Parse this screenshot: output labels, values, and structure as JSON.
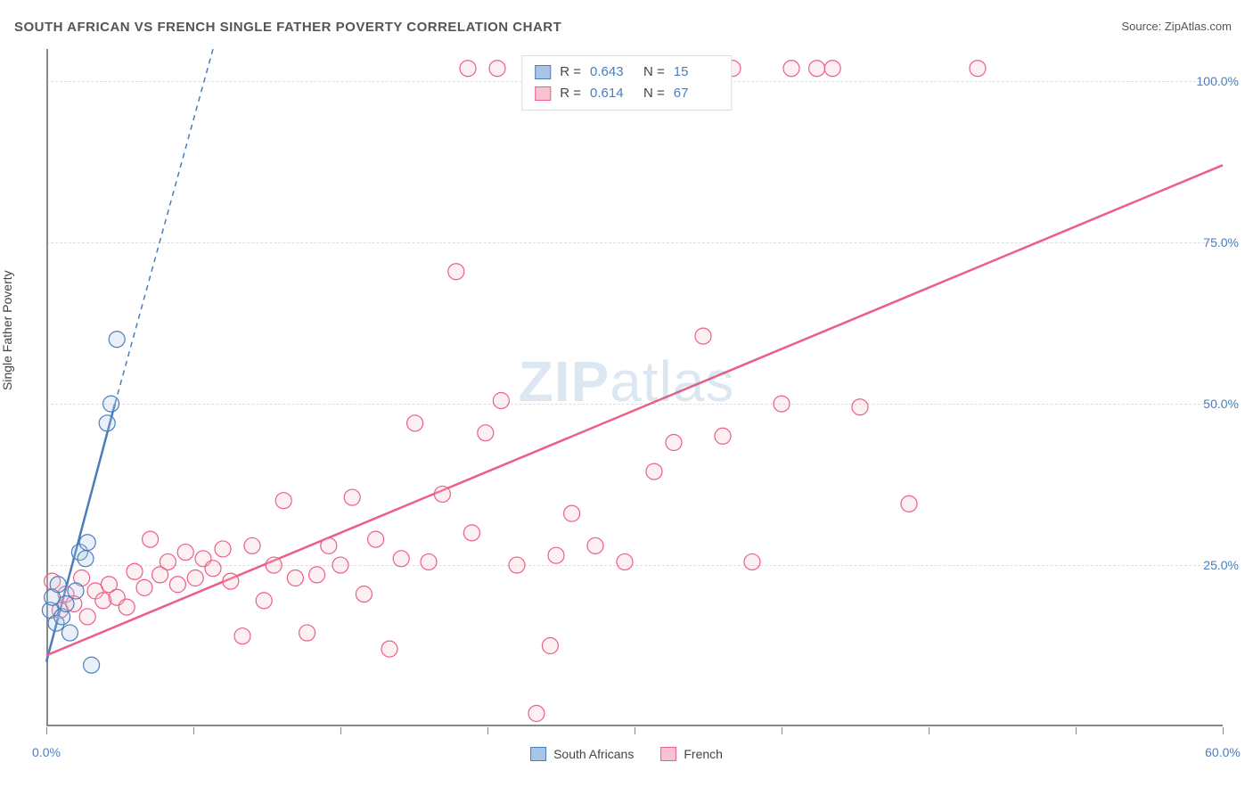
{
  "title": "SOUTH AFRICAN VS FRENCH SINGLE FATHER POVERTY CORRELATION CHART",
  "source_prefix": "Source: ",
  "source_link": "ZipAtlas.com",
  "ylabel": "Single Father Poverty",
  "watermark_bold": "ZIP",
  "watermark_rest": "atlas",
  "chart": {
    "type": "scatter",
    "background_color": "#ffffff",
    "grid_color": "#dddddd",
    "axis_color": "#888888",
    "tick_label_color": "#4a7ebb",
    "text_color": "#444444",
    "xlim": [
      0,
      60
    ],
    "ylim": [
      0,
      105
    ],
    "x_ticks": [
      0,
      7.5,
      15,
      22.5,
      30,
      37.5,
      45,
      52.5,
      60
    ],
    "x_tick_labels": {
      "0": "0.0%",
      "60": "60.0%"
    },
    "y_gridlines": [
      25,
      50,
      75,
      100
    ],
    "y_tick_labels": {
      "25": "25.0%",
      "50": "50.0%",
      "75": "75.0%",
      "100": "100.0%"
    },
    "marker_radius": 9,
    "marker_stroke_width": 1.2,
    "marker_fill_opacity": 0.25,
    "trend_line_width": 2.5,
    "trend_line_dash": "6,5",
    "series": [
      {
        "name": "South Africans",
        "color_stroke": "#4a7ebb",
        "color_fill": "#a8c5e8",
        "R": "0.643",
        "N": "15",
        "trend": {
          "x1": 0,
          "y1": 10,
          "x2_solid": 3.5,
          "y2_solid": 50,
          "x2_dash": 8.5,
          "y2_dash": 105
        },
        "points": [
          [
            0.2,
            18
          ],
          [
            0.3,
            20
          ],
          [
            0.5,
            16
          ],
          [
            0.6,
            22
          ],
          [
            0.8,
            17
          ],
          [
            1.0,
            19
          ],
          [
            1.2,
            14.5
          ],
          [
            1.5,
            21
          ],
          [
            1.7,
            27
          ],
          [
            2.0,
            26
          ],
          [
            2.1,
            28.5
          ],
          [
            2.3,
            9.5
          ],
          [
            3.1,
            47
          ],
          [
            3.3,
            50
          ],
          [
            3.6,
            60
          ]
        ]
      },
      {
        "name": "French",
        "color_stroke": "#ec5e87",
        "color_fill": "#f8c3d0",
        "R": "0.614",
        "N": "67",
        "trend": {
          "x1": 0,
          "y1": 11,
          "x2_solid": 60,
          "y2_solid": 87,
          "x2_dash": 60,
          "y2_dash": 87
        },
        "points": [
          [
            0.3,
            22.5
          ],
          [
            0.7,
            18
          ],
          [
            1.0,
            20.5
          ],
          [
            1.4,
            19
          ],
          [
            1.8,
            23
          ],
          [
            2.1,
            17
          ],
          [
            2.5,
            21
          ],
          [
            2.9,
            19.5
          ],
          [
            3.2,
            22
          ],
          [
            3.6,
            20
          ],
          [
            4.1,
            18.5
          ],
          [
            4.5,
            24
          ],
          [
            5.0,
            21.5
          ],
          [
            5.3,
            29
          ],
          [
            5.8,
            23.5
          ],
          [
            6.2,
            25.5
          ],
          [
            6.7,
            22
          ],
          [
            7.1,
            27
          ],
          [
            7.6,
            23
          ],
          [
            8.0,
            26
          ],
          [
            8.5,
            24.5
          ],
          [
            9.0,
            27.5
          ],
          [
            9.4,
            22.5
          ],
          [
            10.0,
            14
          ],
          [
            10.5,
            28
          ],
          [
            11.1,
            19.5
          ],
          [
            11.6,
            25
          ],
          [
            12.1,
            35
          ],
          [
            12.7,
            23
          ],
          [
            13.3,
            14.5
          ],
          [
            13.8,
            23.5
          ],
          [
            14.4,
            28
          ],
          [
            15.0,
            25
          ],
          [
            15.6,
            35.5
          ],
          [
            16.2,
            20.5
          ],
          [
            16.8,
            29
          ],
          [
            17.5,
            12
          ],
          [
            18.1,
            26
          ],
          [
            18.8,
            47
          ],
          [
            19.5,
            25.5
          ],
          [
            20.2,
            36
          ],
          [
            20.9,
            70.5
          ],
          [
            21.7,
            30
          ],
          [
            22.4,
            45.5
          ],
          [
            23.2,
            50.5
          ],
          [
            24.0,
            25
          ],
          [
            25.0,
            2
          ],
          [
            25.7,
            12.5
          ],
          [
            26.0,
            26.5
          ],
          [
            26.8,
            33
          ],
          [
            28.0,
            28
          ],
          [
            29.5,
            25.5
          ],
          [
            31.0,
            39.5
          ],
          [
            32.0,
            44
          ],
          [
            33.5,
            60.5
          ],
          [
            34.5,
            45
          ],
          [
            36.0,
            25.5
          ],
          [
            37.5,
            50
          ],
          [
            39.3,
            102
          ],
          [
            40.1,
            102
          ],
          [
            41.5,
            49.5
          ],
          [
            44.0,
            34.5
          ],
          [
            47.5,
            102
          ],
          [
            21.5,
            102
          ],
          [
            23.0,
            102
          ],
          [
            35.0,
            102
          ],
          [
            38.0,
            102
          ]
        ]
      }
    ],
    "top_legend_cols": [
      "R =",
      "N ="
    ],
    "bottom_legend": [
      "South Africans",
      "French"
    ]
  }
}
